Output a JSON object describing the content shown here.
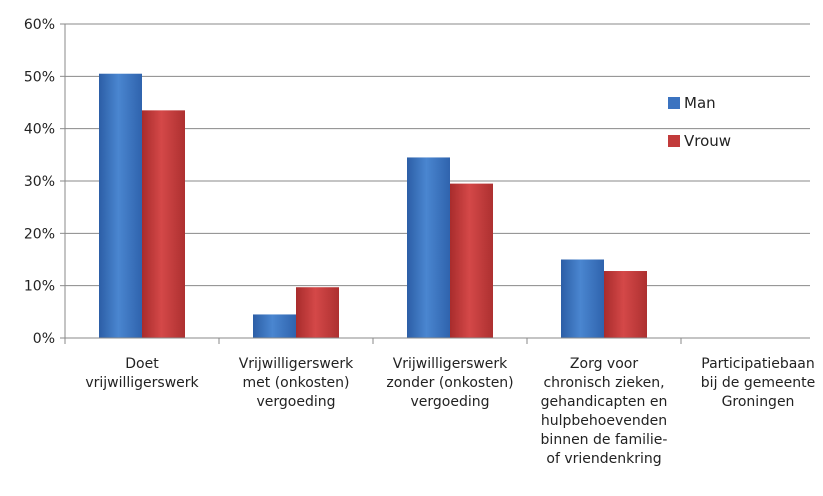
{
  "chart_data": {
    "type": "bar",
    "title": "",
    "xlabel": "",
    "ylabel": "",
    "ylim": [
      0,
      60
    ],
    "y_ticks": [
      "0%",
      "10%",
      "20%",
      "30%",
      "40%",
      "50%",
      "60%"
    ],
    "grid": true,
    "legend_position": "right",
    "categories": [
      [
        "Doet",
        "vrijwilligerswerk"
      ],
      [
        "Vrijwilligerswerk",
        "met (onkosten)",
        "vergoeding"
      ],
      [
        "Vrijwilligerswerk",
        "zonder (onkosten)",
        "vergoeding"
      ],
      [
        "Zorg voor",
        "chronisch zieken,",
        "gehandicapten en",
        "hulpbehoevenden",
        "binnen de familie-",
        "of vriendenkring"
      ],
      [
        "Participatiebaan",
        "bij de gemeente",
        "Groningen"
      ]
    ],
    "series": [
      {
        "name": "Man",
        "color": "#3b73c0",
        "values": [
          50.5,
          4.5,
          34.5,
          15,
          0
        ]
      },
      {
        "name": "Vrouw",
        "color": "#c23b3b",
        "values": [
          43.5,
          9.7,
          29.5,
          12.8,
          0
        ]
      }
    ]
  }
}
